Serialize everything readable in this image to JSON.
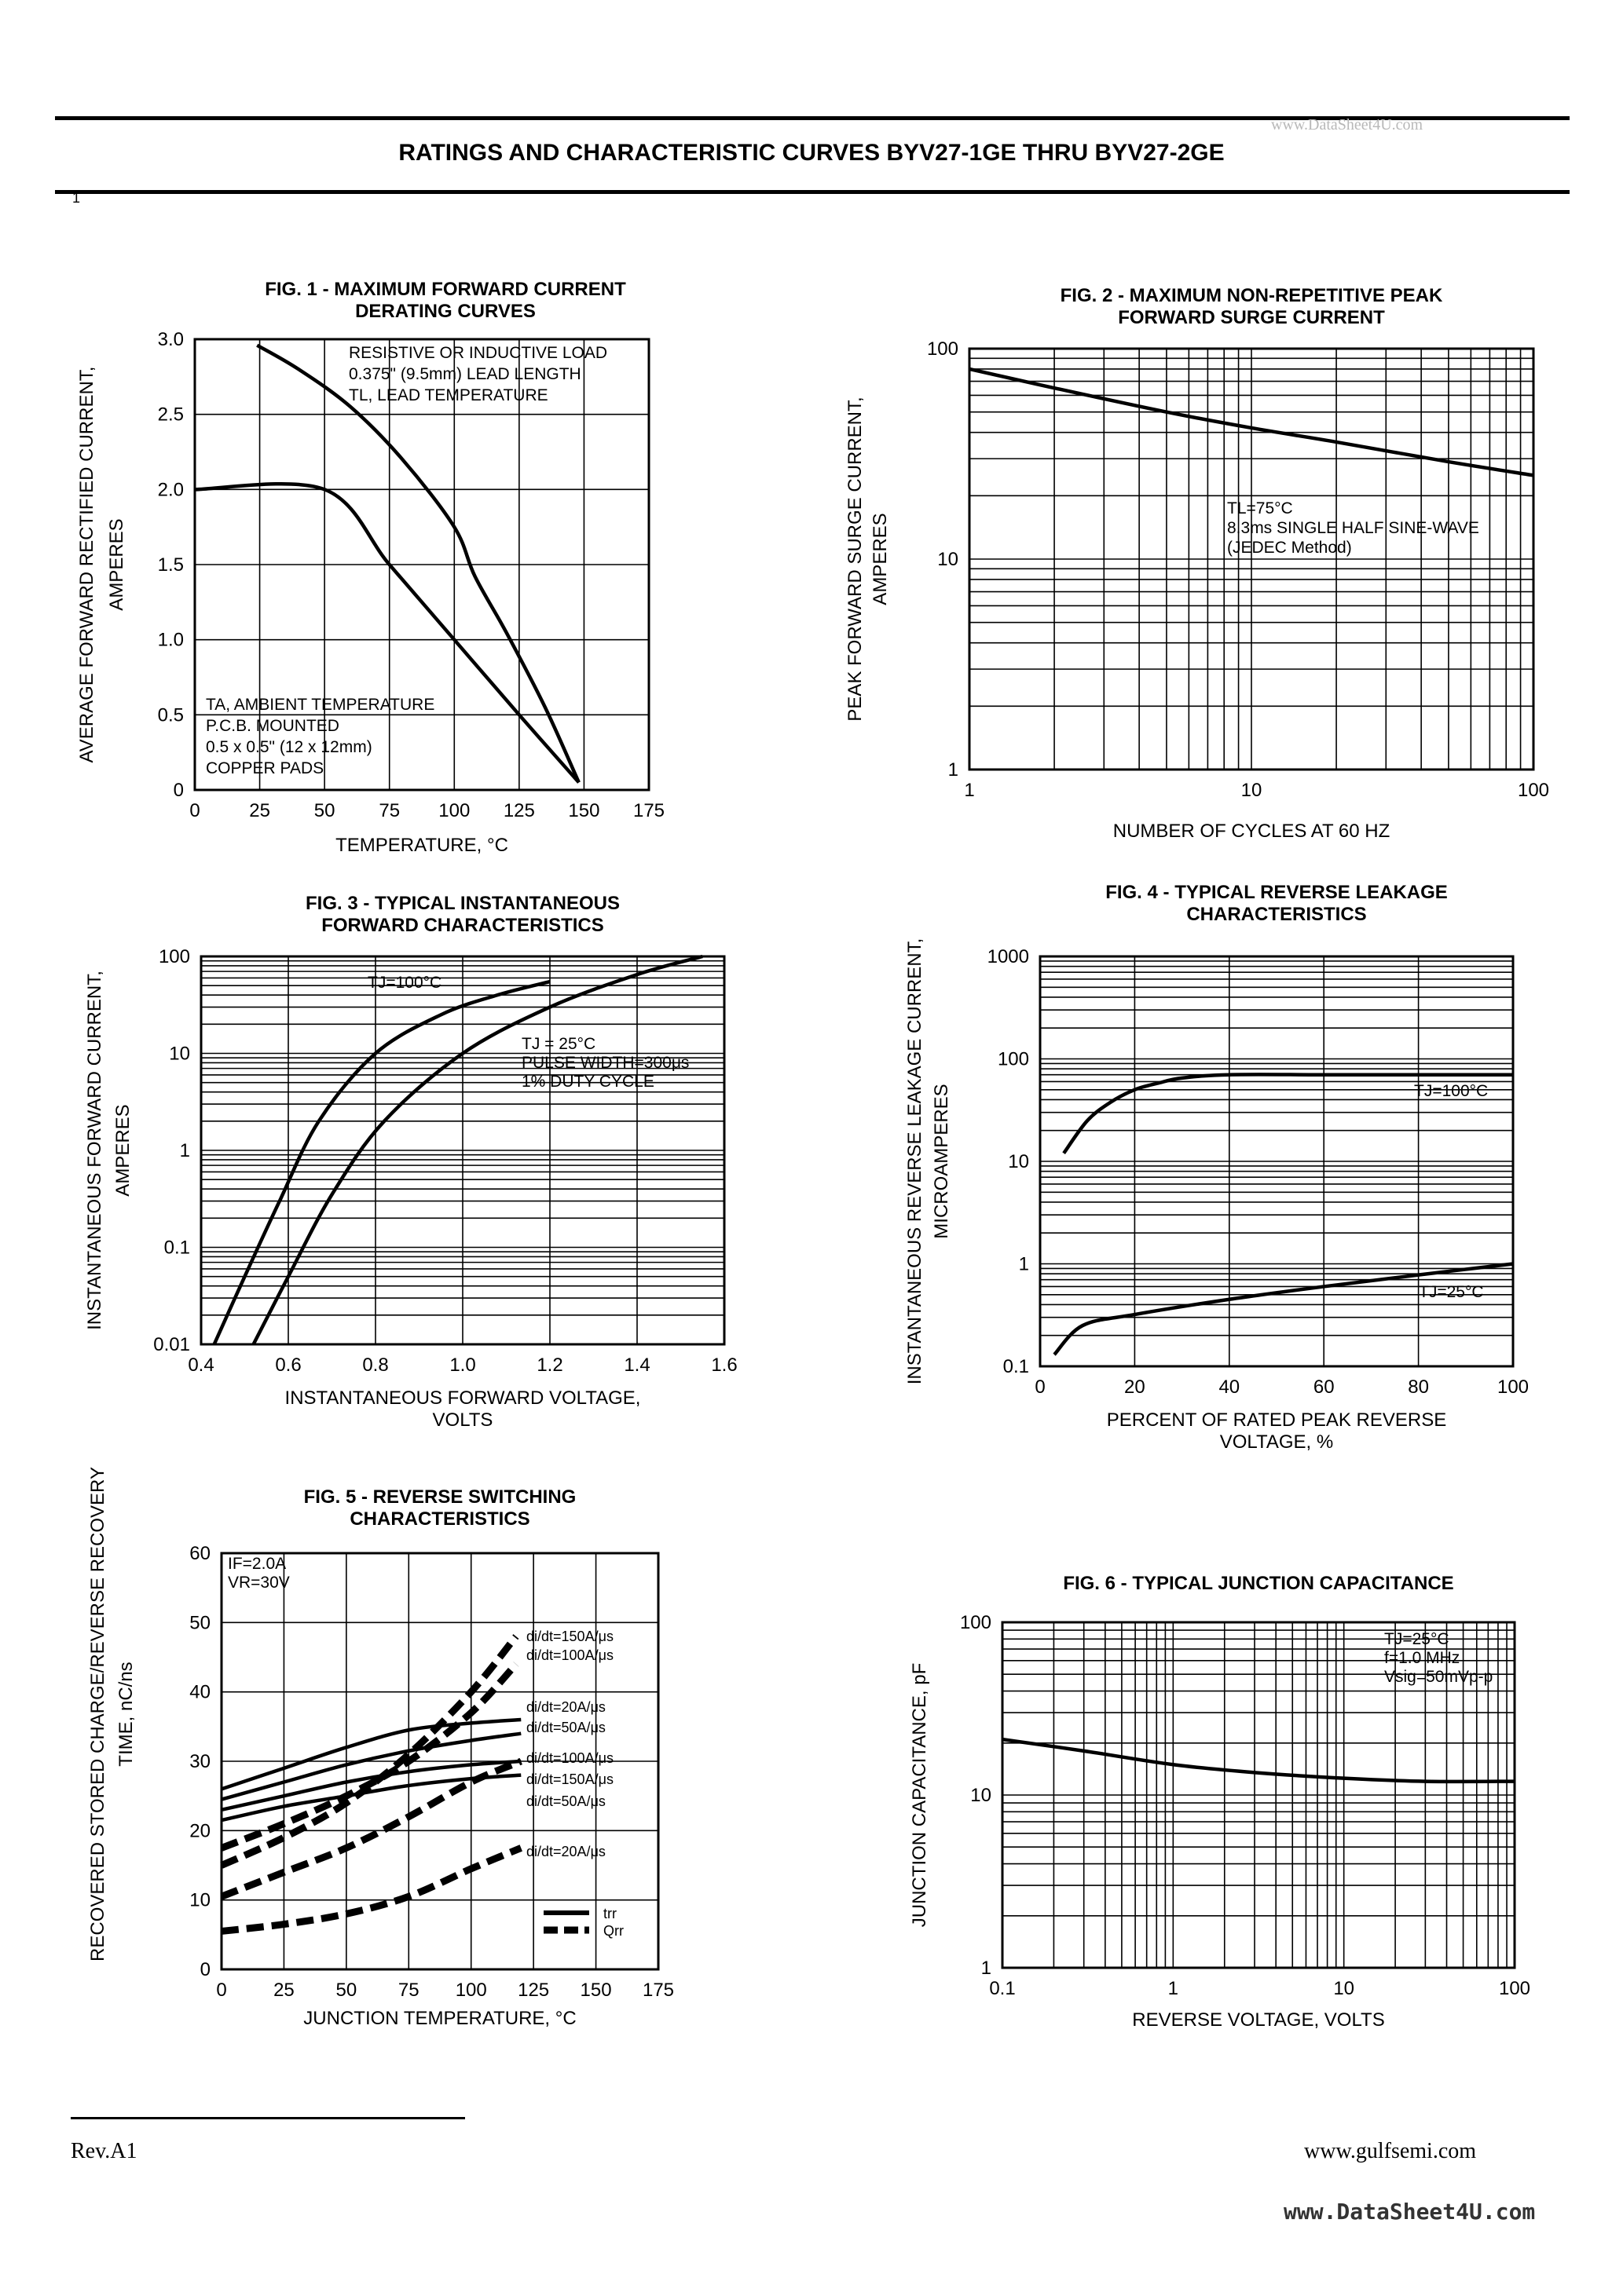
{
  "page": {
    "title": "RATINGS AND CHARACTERISTIC CURVES BYV27-1GE THRU BYV27-2GE",
    "watermark_top": "www.DataSheet4U.com",
    "page_mark": "1",
    "revision": "Rev.A1",
    "website": "www.gulfsemi.com",
    "watermark_bottom": "www.DataSheet4U.com"
  },
  "chart_data": [
    {
      "id": "fig1",
      "type": "line",
      "title": [
        "FIG. 1 - MAXIMUM FORWARD CURRENT",
        "DERATING CURVES"
      ],
      "xlabel": [
        "TEMPERATURE, °C"
      ],
      "ylabel": [
        "AVERAGE FORWARD RECTIFIED CURRENT,",
        "AMPERES"
      ],
      "xscale": "linear",
      "yscale": "linear",
      "xlim": [
        0,
        175
      ],
      "ylim": [
        0,
        3.0
      ],
      "xticks": [
        0,
        25,
        50,
        75,
        100,
        125,
        150,
        175
      ],
      "xtick_labels": [
        "0",
        "25",
        "50",
        "75",
        "100",
        "125",
        "150",
        "175"
      ],
      "yticks": [
        0,
        0.5,
        1.0,
        1.5,
        2.0,
        2.5,
        3.0
      ],
      "ytick_labels": [
        "0",
        "0.5",
        "1.0",
        "1.5",
        "2.0",
        "2.5",
        "3.0"
      ],
      "grid_x": [
        25,
        50,
        75,
        100,
        125,
        150
      ],
      "grid_y": [
        0.5,
        1.0,
        1.5,
        2.0,
        2.5
      ],
      "series": [
        {
          "x": [
            24,
            40,
            60,
            80,
            100,
            108,
            120,
            135,
            148
          ],
          "y": [
            2.96,
            2.8,
            2.55,
            2.2,
            1.75,
            1.42,
            1.05,
            0.55,
            0.05
          ],
          "style": "solid"
        },
        {
          "x": [
            0,
            50,
            75,
            100,
            125,
            148
          ],
          "y": [
            2.0,
            2.0,
            1.5,
            1.0,
            0.5,
            0.05
          ],
          "style": "solid"
        }
      ],
      "annotations": [
        {
          "lines": [
            "RESISTIVE OR INDUCTIVE LOAD",
            "0.375\" (9.5mm) LEAD LENGTH",
            "TL, LEAD TEMPERATURE"
          ],
          "pos": "top-right"
        },
        {
          "lines": [
            "TA, AMBIENT TEMPERATURE",
            "P.C.B. MOUNTED",
            "0.5 x 0.5\" (12 x 12mm)",
            "COPPER PADS"
          ],
          "pos": "bottom-left"
        }
      ]
    },
    {
      "id": "fig2",
      "type": "line",
      "title": [
        "FIG. 2 - MAXIMUM NON-REPETITIVE PEAK",
        "FORWARD SURGE CURRENT"
      ],
      "xlabel": [
        "NUMBER OF CYCLES AT 60 HZ"
      ],
      "ylabel": [
        "PEAK FORWARD SURGE CURRENT,",
        "AMPERES"
      ],
      "xscale": "log",
      "yscale": "log",
      "xlim": [
        1,
        100
      ],
      "ylim": [
        1,
        100
      ],
      "xticks": [
        1,
        10,
        100
      ],
      "xtick_labels": [
        "1",
        "10",
        "100"
      ],
      "yticks": [
        1,
        10,
        100
      ],
      "ytick_labels": [
        "1",
        "10",
        "100"
      ],
      "series": [
        {
          "x": [
            1,
            2,
            5,
            10,
            20,
            50,
            100
          ],
          "y": [
            80,
            65,
            50,
            42,
            36,
            29,
            25
          ],
          "style": "solid"
        }
      ],
      "annotations": [
        {
          "lines": [
            "TL=75°C",
            "8.3ms SINGLE HALF SINE-WAVE",
            "(JEDEC Method)"
          ],
          "pos": "middle-right"
        }
      ]
    },
    {
      "id": "fig3",
      "type": "line",
      "title": [
        "FIG. 3 - TYPICAL INSTANTANEOUS",
        "FORWARD CHARACTERISTICS"
      ],
      "xlabel": [
        "INSTANTANEOUS FORWARD VOLTAGE,",
        "VOLTS"
      ],
      "ylabel": [
        "INSTANTANEOUS FORWARD CURRENT,",
        "AMPERES"
      ],
      "xscale": "linear",
      "yscale": "log",
      "xlim": [
        0.4,
        1.6
      ],
      "ylim": [
        0.01,
        100
      ],
      "xticks": [
        0.4,
        0.6,
        0.8,
        1.0,
        1.2,
        1.4,
        1.6
      ],
      "xtick_labels": [
        "0.4",
        "0.6",
        "0.8",
        "1.0",
        "1.2",
        "1.4",
        "1.6"
      ],
      "yticks": [
        0.01,
        0.1,
        1,
        10,
        100
      ],
      "ytick_labels": [
        "0.01",
        "0.1",
        "1",
        "10",
        "100"
      ],
      "grid_x": [
        0.6,
        0.8,
        1.0,
        1.2,
        1.4
      ],
      "series": [
        {
          "name": "TJ=100°C",
          "x": [
            0.43,
            0.5,
            0.58,
            0.67,
            0.8,
            0.95,
            1.08,
            1.2
          ],
          "y": [
            0.01,
            0.05,
            0.3,
            2,
            10,
            25,
            40,
            55
          ],
          "style": "solid"
        },
        {
          "name": "TJ = 25°C",
          "x": [
            0.52,
            0.6,
            0.7,
            0.82,
            1.0,
            1.2,
            1.4,
            1.55
          ],
          "y": [
            0.01,
            0.05,
            0.35,
            2,
            10,
            30,
            65,
            100
          ],
          "style": "solid"
        }
      ],
      "annotations": [
        {
          "lines": [
            "TJ=100°C"
          ],
          "pos": "top"
        },
        {
          "lines": [
            "TJ = 25°C",
            "PULSE WIDTH=300μs",
            "1% DUTY CYCLE"
          ],
          "pos": "right"
        }
      ]
    },
    {
      "id": "fig4",
      "type": "line",
      "title": [
        "FIG. 4 - TYPICAL REVERSE LEAKAGE",
        "CHARACTERISTICS"
      ],
      "xlabel": [
        "PERCENT OF RATED PEAK REVERSE",
        "VOLTAGE, %"
      ],
      "ylabel": [
        "INSTANTANEOUS REVERSE LEAKAGE CURRENT,",
        "MICROAMPERES"
      ],
      "xscale": "linear",
      "yscale": "log",
      "xlim": [
        0,
        100
      ],
      "ylim": [
        0.1,
        1000
      ],
      "xticks": [
        0,
        20,
        40,
        60,
        80,
        100
      ],
      "xtick_labels": [
        "0",
        "20",
        "40",
        "60",
        "80",
        "100"
      ],
      "yticks": [
        0.1,
        1,
        10,
        100,
        1000
      ],
      "ytick_labels": [
        "0.1",
        "1",
        "10",
        "100",
        "1000"
      ],
      "grid_x": [
        20,
        40,
        60,
        80
      ],
      "series": [
        {
          "name": "TJ=100°C",
          "x": [
            5,
            10,
            15,
            20,
            25,
            30,
            40,
            60,
            80,
            100
          ],
          "y": [
            12,
            25,
            38,
            50,
            58,
            65,
            70,
            70,
            70,
            70
          ],
          "style": "solid"
        },
        {
          "name": "TJ=25°C",
          "x": [
            3,
            9,
            20,
            40,
            60,
            80,
            100
          ],
          "y": [
            0.13,
            0.25,
            0.32,
            0.45,
            0.6,
            0.78,
            1.0
          ],
          "style": "solid"
        }
      ],
      "annotations": [
        {
          "lines": [
            "TJ=100°C"
          ],
          "pos": "right"
        },
        {
          "lines": [
            "TJ=25°C"
          ],
          "pos": "right"
        }
      ]
    },
    {
      "id": "fig5",
      "type": "line",
      "title": [
        "FIG. 5 - REVERSE SWITCHING",
        "CHARACTERISTICS"
      ],
      "xlabel": [
        "JUNCTION TEMPERATURE, °C"
      ],
      "ylabel": [
        "RECOVERED STORED CHARGE/REVERSE RECOVERY",
        "TIME, nC/ns"
      ],
      "xscale": "linear",
      "yscale": "linear",
      "xlim": [
        0,
        175
      ],
      "ylim": [
        0,
        60
      ],
      "xticks": [
        0,
        25,
        50,
        75,
        100,
        125,
        150,
        175
      ],
      "xtick_labels": [
        "0",
        "25",
        "50",
        "75",
        "100",
        "125",
        "150",
        "175"
      ],
      "yticks": [
        0,
        10,
        20,
        30,
        40,
        50,
        60
      ],
      "ytick_labels": [
        "0",
        "10",
        "20",
        "30",
        "40",
        "50",
        "60"
      ],
      "grid_x": [
        25,
        50,
        75,
        100,
        125,
        150
      ],
      "grid_y": [
        10,
        20,
        30,
        40,
        50
      ],
      "legend": [
        {
          "label": "trr",
          "style": "solid"
        },
        {
          "label": "Qrr",
          "style": "dashed"
        }
      ],
      "legend_position": "bottom-right",
      "series": [
        {
          "name": "trr di/dt=20A/μs",
          "x": [
            0,
            25,
            50,
            75,
            100,
            120
          ],
          "y": [
            26,
            29,
            32,
            34.5,
            35.5,
            36
          ],
          "style": "solid"
        },
        {
          "name": "trr di/dt=50A/μs",
          "x": [
            0,
            25,
            50,
            75,
            100,
            120
          ],
          "y": [
            24.5,
            27,
            29.5,
            31.5,
            33,
            34
          ],
          "style": "solid"
        },
        {
          "name": "trr di/dt=100A/μs",
          "x": [
            0,
            25,
            50,
            75,
            100,
            120
          ],
          "y": [
            23,
            25,
            27,
            28.5,
            29.5,
            30
          ],
          "style": "solid"
        },
        {
          "name": "trr di/dt=150A/μs",
          "x": [
            0,
            25,
            50,
            75,
            100,
            120
          ],
          "y": [
            21.5,
            23.5,
            25,
            26.5,
            27.5,
            28
          ],
          "style": "solid"
        },
        {
          "name": "Qrr di/dt=150A/μs",
          "x": [
            0,
            25,
            50,
            75,
            100,
            118
          ],
          "y": [
            15,
            19,
            24,
            31,
            40,
            48
          ],
          "style": "dashed"
        },
        {
          "name": "Qrr di/dt=100A/μs",
          "x": [
            0,
            25,
            50,
            75,
            100,
            118
          ],
          "y": [
            17.5,
            21,
            25,
            30,
            37,
            44
          ],
          "style": "dashed"
        },
        {
          "name": "Qrr di/dt=50A/μs",
          "x": [
            0,
            25,
            50,
            75,
            100,
            120
          ],
          "y": [
            10.5,
            14,
            17.5,
            22,
            27,
            30
          ],
          "style": "dashed"
        },
        {
          "name": "Qrr di/dt=20A/μs",
          "x": [
            0,
            25,
            50,
            75,
            100,
            120
          ],
          "y": [
            5.5,
            6.5,
            8,
            10.5,
            14.5,
            17.5
          ],
          "style": "dashed"
        }
      ],
      "annotations": [
        {
          "lines": [
            "IF=2.0A",
            "VR=30V"
          ],
          "pos": "top-left"
        },
        {
          "lines": [
            "di/dt=150A/μs",
            "di/dt=100A/μs",
            "di/dt=20A/μs",
            "di/dt=50A/μs",
            "di/dt=100A/μs",
            "di/dt=150A/μs",
            "di/dt=50A/μs",
            "di/dt=20A/μs"
          ],
          "pos": "right"
        }
      ]
    },
    {
      "id": "fig6",
      "type": "line",
      "title": [
        "FIG. 6 - TYPICAL JUNCTION CAPACITANCE"
      ],
      "xlabel": [
        "REVERSE VOLTAGE, VOLTS"
      ],
      "ylabel": [
        "JUNCTION CAPACITANCE, pF"
      ],
      "xscale": "log",
      "yscale": "log",
      "xlim": [
        0.1,
        100
      ],
      "ylim": [
        1,
        100
      ],
      "xticks": [
        0.1,
        1,
        10,
        100
      ],
      "xtick_labels": [
        "0.1",
        "1",
        "10",
        "100"
      ],
      "yticks": [
        1,
        10,
        100
      ],
      "ytick_labels": [
        "1",
        "10",
        "100"
      ],
      "series": [
        {
          "x": [
            0.1,
            0.3,
            1,
            3,
            10,
            30,
            100
          ],
          "y": [
            21,
            18,
            15,
            13.5,
            12.5,
            12,
            12
          ],
          "style": "solid"
        }
      ],
      "annotations": [
        {
          "lines": [
            "TJ=25°C",
            "f=1.0 MHz",
            "Vsig=50mVp-p"
          ],
          "pos": "top-right"
        }
      ]
    }
  ]
}
